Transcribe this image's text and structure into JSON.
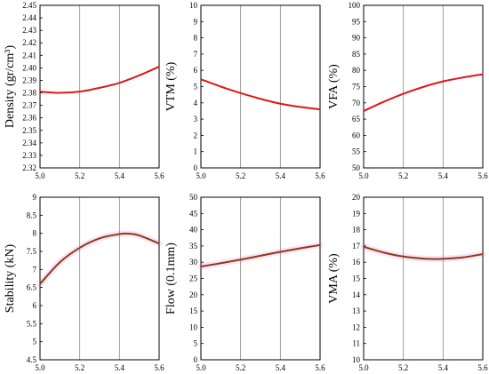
{
  "chart_data": [
    {
      "type": "line",
      "ylabel": "Density (gr/cm³)",
      "xlim": [
        5.0,
        5.6
      ],
      "ylim": [
        2.32,
        2.45
      ],
      "xticks": [
        "5.0",
        "5.2",
        "5.4",
        "5.6"
      ],
      "yticks": [
        "2.32",
        "2.33",
        "2.34",
        "2.35",
        "2.36",
        "2.37",
        "2.38",
        "2.39",
        "2.40",
        "2.41",
        "2.42",
        "2.43",
        "2.44",
        "2.45"
      ],
      "color": "#e0161b",
      "glow": false,
      "series": [
        {
          "x": [
            5.0,
            5.1,
            5.2,
            5.3,
            5.4,
            5.5,
            5.6
          ],
          "y": [
            2.381,
            2.38,
            2.381,
            2.384,
            2.388,
            2.394,
            2.401
          ]
        }
      ]
    },
    {
      "type": "line",
      "ylabel": "VTM (%)",
      "xlim": [
        5.0,
        5.6
      ],
      "ylim": [
        0,
        10
      ],
      "xticks": [
        "5.0",
        "5.2",
        "5.4",
        "5.6"
      ],
      "yticks": [
        "0",
        "1",
        "2",
        "3",
        "4",
        "5",
        "6",
        "7",
        "8",
        "9",
        "10"
      ],
      "color": "#e0161b",
      "glow": false,
      "series": [
        {
          "x": [
            5.0,
            5.1,
            5.2,
            5.3,
            5.4,
            5.5,
            5.6
          ],
          "y": [
            5.45,
            5.0,
            4.6,
            4.25,
            3.95,
            3.75,
            3.6
          ]
        }
      ]
    },
    {
      "type": "line",
      "ylabel": "VFA (%)",
      "xlim": [
        5.0,
        5.6
      ],
      "ylim": [
        50,
        100
      ],
      "xticks": [
        "5.0",
        "5.2",
        "5.4",
        "5.6"
      ],
      "yticks": [
        "50",
        "55",
        "60",
        "65",
        "70",
        "75",
        "80",
        "85",
        "90",
        "95",
        "100"
      ],
      "color": "#e0161b",
      "glow": false,
      "series": [
        {
          "x": [
            5.0,
            5.1,
            5.2,
            5.3,
            5.4,
            5.5,
            5.6
          ],
          "y": [
            67.5,
            70.3,
            72.8,
            74.9,
            76.6,
            77.8,
            78.8
          ]
        }
      ]
    },
    {
      "type": "line",
      "ylabel": "Stability (kN)",
      "xlim": [
        5.0,
        5.6
      ],
      "ylim": [
        4.5,
        9
      ],
      "xticks": [
        "5.0",
        "5.2",
        "5.4",
        "5.6"
      ],
      "yticks": [
        "4.5",
        "5",
        "5.5",
        "6",
        "6.5",
        "7",
        "7.5",
        "8",
        "8.5",
        "9"
      ],
      "color": "#8c3b12",
      "glow": true,
      "series": [
        {
          "x": [
            5.0,
            5.1,
            5.2,
            5.3,
            5.4,
            5.45,
            5.5,
            5.6
          ],
          "y": [
            6.6,
            7.2,
            7.6,
            7.86,
            7.98,
            7.99,
            7.94,
            7.72
          ]
        }
      ]
    },
    {
      "type": "line",
      "ylabel": "Flow (0.1mm)",
      "xlim": [
        5.0,
        5.6
      ],
      "ylim": [
        0,
        50
      ],
      "xticks": [
        "5.0",
        "5.2",
        "5.4",
        "5.6"
      ],
      "yticks": [
        "0",
        "5",
        "10",
        "15",
        "20",
        "25",
        "30",
        "35",
        "40",
        "45",
        "50"
      ],
      "color": "#8c3b12",
      "glow": true,
      "series": [
        {
          "x": [
            5.0,
            5.1,
            5.2,
            5.3,
            5.4,
            5.5,
            5.6
          ],
          "y": [
            28.7,
            29.7,
            30.8,
            32.0,
            33.2,
            34.3,
            35.3
          ]
        }
      ]
    },
    {
      "type": "line",
      "ylabel": "VMA (%)",
      "xlim": [
        5.0,
        5.6
      ],
      "ylim": [
        10,
        20
      ],
      "xticks": [
        "5.0",
        "5.2",
        "5.4",
        "5.6"
      ],
      "yticks": [
        "10",
        "11",
        "12",
        "13",
        "14",
        "15",
        "16",
        "17",
        "18",
        "19",
        "20"
      ],
      "color": "#8c3b12",
      "glow": true,
      "series": [
        {
          "x": [
            5.0,
            5.1,
            5.2,
            5.3,
            5.35,
            5.4,
            5.5,
            5.6
          ],
          "y": [
            16.95,
            16.6,
            16.35,
            16.22,
            16.2,
            16.21,
            16.3,
            16.5
          ]
        }
      ]
    }
  ]
}
